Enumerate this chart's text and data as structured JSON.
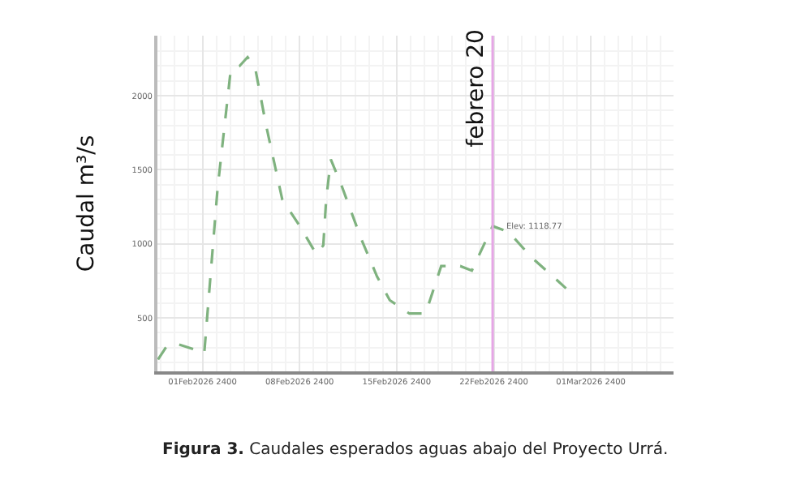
{
  "chart_data": {
    "type": "line",
    "ylabel": "Caudal m³/s",
    "x": [
      "2026-01-29T19:00",
      "2026-01-30T10:00",
      "2026-01-31T00:00",
      "2026-02-01T08:00",
      "2026-02-02T03:00",
      "2026-02-03T02:00",
      "2026-02-04T01:00",
      "2026-02-04T16:00",
      "2026-02-05T06:00",
      "2026-02-05T19:00",
      "2026-02-06T14:00",
      "2026-02-07T18:00",
      "2026-02-09T02:00",
      "2026-02-10T05:00",
      "2026-02-10T17:00",
      "2026-02-10T22:00",
      "2026-02-11T06:00",
      "2026-02-12T00:00",
      "2026-02-13T10:00",
      "2026-02-14T14:00",
      "2026-02-15T12:00",
      "2026-02-16T22:00",
      "2026-02-18T02:00",
      "2026-02-19T05:00",
      "2026-02-20T14:00",
      "2026-02-21T10:00",
      "2026-02-22T22:00",
      "2026-02-24T02:00",
      "2026-02-25T17:00",
      "2026-02-26T19:00",
      "2026-02-28T05:00"
    ],
    "series": [
      {
        "color": "#7fb27f",
        "values": [
          220,
          310,
          330,
          290,
          260,
          1370,
          2180,
          2200,
          2260,
          2190,
          1800,
          1300,
          1110,
          930,
          990,
          1300,
          1570,
          1400,
          1040,
          780,
          620,
          530,
          530,
          850,
          850,
          820,
          1120,
          1080,
          910,
          820,
          700
        ]
      }
    ],
    "xlim": [
      "2026-01-29T18:00",
      "2026-03-07T23:00"
    ],
    "xticks": [
      {
        "value": "2026-02-01T23:59",
        "label": "01Feb2026 2400"
      },
      {
        "value": "2026-02-08T23:59",
        "label": "08Feb2026 2400"
      },
      {
        "value": "2026-02-15T23:59",
        "label": "15Feb2026 2400"
      },
      {
        "value": "2026-02-22T23:59",
        "label": "22Feb2026 2400"
      },
      {
        "value": "2026-03-01T23:59",
        "label": "01Mar2026 2400"
      }
    ],
    "ylim": [
      140,
      2405
    ],
    "yticks": [
      500,
      1000,
      1500,
      2000
    ],
    "grid": true,
    "marker": "none",
    "line_style": "dashed",
    "ref_lines": [
      {
        "axis": "x",
        "value": "2026-02-22T22:00",
        "label": "febrero 20",
        "color": "#e6a6e6"
      }
    ],
    "annotations": [
      {
        "text": "Elev: 1118.77",
        "x": "2026-02-22T22:00",
        "y": 1118.77
      },
      "Figura 3. Caudales esperados aguas abajo del Proyecto Urrá."
    ]
  }
}
